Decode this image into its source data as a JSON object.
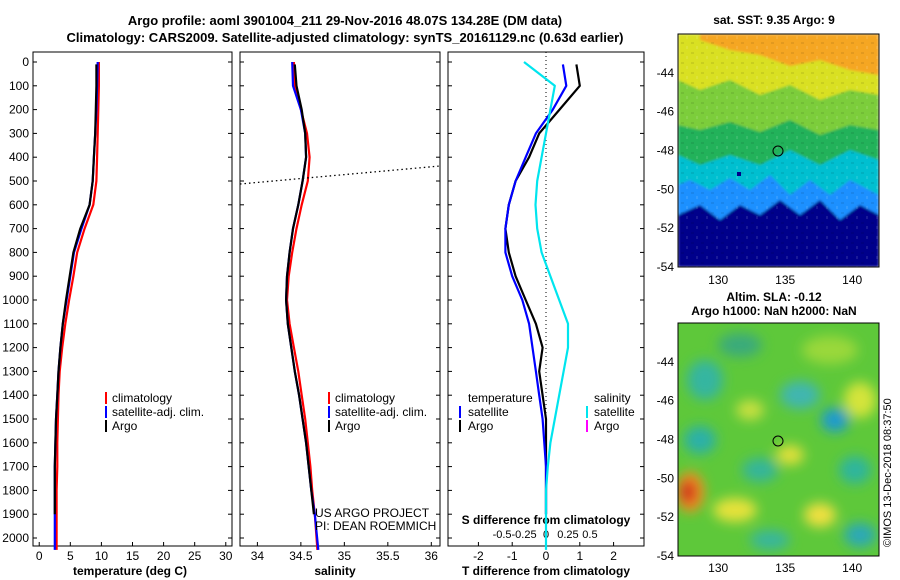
{
  "header": {
    "title_line1": "Argo profile: aoml 3901004_211 29-Nov-2016 48.07S 134.28E (DM data)",
    "title_line2": "Climatology: CARS2009. Satellite-adjusted climatology: synTS_20161129.nc (0.63d earlier)"
  },
  "depth_ticks": [
    "0",
    "100",
    "200",
    "300",
    "400",
    "500",
    "600",
    "700",
    "800",
    "900",
    "1000",
    "1100",
    "1200",
    "1300",
    "1400",
    "1500",
    "1600",
    "1700",
    "1800",
    "1900",
    "2000"
  ],
  "colors": {
    "climatology": "#ff0000",
    "satellite": "#0000ff",
    "argo": "#000000",
    "sal_satellite": "#00e5ee",
    "sal_argo": "#ff00ff"
  },
  "temp_panel": {
    "xlabel": "temperature (deg C)",
    "xticks": [
      "0",
      "5",
      "10",
      "15",
      "20",
      "25",
      "30"
    ],
    "legend": {
      "clim": "climatology",
      "sat": "satellite-adj. clim.",
      "argo": "Argo"
    }
  },
  "sal_panel": {
    "xlabel": "salinity",
    "xticks": [
      "34",
      "34.5",
      "35",
      "35.5",
      "36"
    ],
    "legend": {
      "clim": "climatology",
      "sat": "satellite-adj. clim.",
      "argo": "Argo"
    },
    "note_line1": "US ARGO PROJECT",
    "note_line2": "PI: DEAN ROEMMICH"
  },
  "diff_panel": {
    "xlabel": "T difference from climatology",
    "xticks": [
      "-2",
      "-1",
      "0",
      "1",
      "2"
    ],
    "s_title": "S difference from climatology",
    "s_ticks": [
      "-0.5",
      "-0.25",
      "0",
      "0.25",
      "0.5"
    ],
    "legend_temp": {
      "title": "temperature",
      "sat": "satellite",
      "argo": "Argo"
    },
    "legend_sal": {
      "title": "salinity",
      "sat": "satellite",
      "argo": "Argo"
    }
  },
  "sst_map": {
    "title": "sat. SST: 9.35 Argo: 9",
    "yticks": [
      "-44",
      "-46",
      "-48",
      "-50",
      "-52",
      "-54"
    ],
    "xticks": [
      "130",
      "135",
      "140"
    ]
  },
  "sla_map": {
    "title_line1": "Altim. SLA: -0.12",
    "title_line2": "Argo h1000: NaN h2000: NaN",
    "yticks": [
      "-44",
      "-46",
      "-48",
      "-50",
      "-52",
      "-54"
    ],
    "xticks": [
      "130",
      "135",
      "140"
    ]
  },
  "stamp": "©IMOS 13-Dec-2018 08:37:50",
  "chart_data": [
    {
      "type": "line",
      "title": "temperature",
      "xlabel": "temperature (deg C)",
      "ylabel": "depth",
      "xlim": [
        -1,
        31
      ],
      "ylim": [
        2050,
        0
      ],
      "series": [
        {
          "name": "climatology",
          "x": [
            9.6,
            9.6,
            9.5,
            9.4,
            9.3,
            9.2,
            8.7,
            7.3,
            6.1,
            5.5,
            4.8,
            4.2,
            3.7,
            3.3,
            3.1,
            3.0,
            2.9,
            2.9,
            2.8,
            2.8,
            2.8
          ],
          "y": [
            0,
            100,
            200,
            300,
            400,
            500,
            600,
            700,
            800,
            900,
            1000,
            1100,
            1200,
            1300,
            1400,
            1500,
            1600,
            1700,
            1800,
            1900,
            2050
          ]
        },
        {
          "name": "satellite-adj. clim.",
          "x": [
            9.4,
            9.3,
            9.2,
            9.0,
            8.8,
            8.6,
            8.1,
            6.8,
            5.6,
            5.0,
            4.4,
            3.8,
            3.4,
            3.1,
            2.9,
            2.7,
            2.6,
            2.5,
            2.5,
            2.5,
            2.5
          ],
          "y": [
            0,
            100,
            200,
            300,
            400,
            500,
            600,
            700,
            800,
            900,
            1000,
            1100,
            1200,
            1300,
            1400,
            1500,
            1600,
            1700,
            1800,
            1900,
            2050
          ]
        },
        {
          "name": "Argo",
          "x": [
            9.2,
            9.2,
            9.1,
            9.0,
            8.8,
            8.6,
            8.1,
            6.6,
            5.5,
            4.9,
            4.3,
            3.8,
            3.4,
            3.1,
            2.9,
            2.7,
            2.6,
            2.5,
            2.5,
            2.5
          ],
          "y": [
            10,
            100,
            200,
            300,
            400,
            500,
            600,
            700,
            800,
            900,
            1000,
            1100,
            1200,
            1300,
            1400,
            1500,
            1600,
            1700,
            1800,
            1900
          ]
        }
      ]
    },
    {
      "type": "line",
      "title": "salinity",
      "xlabel": "salinity",
      "ylabel": "depth",
      "xlim": [
        33.8,
        36.1
      ],
      "ylim": [
        2050,
        0
      ],
      "series": [
        {
          "name": "climatology",
          "x": [
            34.42,
            34.43,
            34.5,
            34.57,
            34.6,
            34.58,
            34.51,
            34.45,
            34.4,
            34.36,
            34.34,
            34.37,
            34.42,
            34.47,
            34.51,
            34.55,
            34.58,
            34.61,
            34.63,
            34.66,
            34.69
          ],
          "y": [
            0,
            100,
            200,
            300,
            400,
            500,
            600,
            700,
            800,
            900,
            1000,
            1100,
            1200,
            1300,
            1400,
            1500,
            1600,
            1700,
            1800,
            1900,
            2050
          ]
        },
        {
          "name": "satellite-adj. clim.",
          "x": [
            34.4,
            34.41,
            34.5,
            34.55,
            34.56,
            34.52,
            34.47,
            34.41,
            34.37,
            34.34,
            34.33,
            34.35,
            34.39,
            34.43,
            34.48,
            34.52,
            34.56,
            34.59,
            34.62,
            34.66,
            34.7
          ],
          "y": [
            0,
            100,
            200,
            300,
            400,
            500,
            600,
            700,
            800,
            900,
            1000,
            1100,
            1200,
            1300,
            1400,
            1500,
            1600,
            1700,
            1800,
            1900,
            2050
          ]
        },
        {
          "name": "Argo",
          "x": [
            34.43,
            34.45,
            34.51,
            34.55,
            34.56,
            34.52,
            34.47,
            34.41,
            34.37,
            34.34,
            34.33,
            34.35,
            34.39,
            34.43,
            34.48,
            34.52,
            34.56,
            34.59,
            34.62,
            34.65
          ],
          "y": [
            10,
            100,
            200,
            300,
            400,
            500,
            600,
            700,
            800,
            900,
            1000,
            1100,
            1200,
            1300,
            1400,
            1500,
            1600,
            1700,
            1800,
            1900
          ]
        }
      ]
    },
    {
      "type": "line",
      "title": "T difference from climatology",
      "xlabel": "T difference from climatology",
      "xlim": [
        -2.9,
        2.9
      ],
      "ylim": [
        2050,
        0
      ],
      "series": [
        {
          "name": "temperature satellite",
          "x": [
            0.5,
            0.6,
            0.2,
            -0.3,
            -0.6,
            -0.9,
            -1.1,
            -1.2,
            -1.2,
            -1.0,
            -0.7,
            -0.5,
            -0.4,
            -0.3,
            -0.2,
            -0.1,
            -0.05,
            0,
            0,
            0
          ],
          "y": [
            10,
            100,
            200,
            300,
            400,
            500,
            600,
            700,
            800,
            900,
            1000,
            1100,
            1200,
            1300,
            1400,
            1500,
            1600,
            1700,
            1800,
            1900
          ]
        },
        {
          "name": "temperature Argo",
          "x": [
            0.9,
            1.0,
            0.4,
            -0.2,
            -0.5,
            -0.9,
            -1.1,
            -1.2,
            -1.1,
            -0.9,
            -0.6,
            -0.3,
            -0.1,
            -0.2,
            -0.1,
            0,
            0,
            0,
            0,
            0
          ],
          "y": [
            10,
            100,
            200,
            300,
            400,
            500,
            600,
            700,
            800,
            900,
            1000,
            1100,
            1200,
            1300,
            1400,
            1500,
            1600,
            1700,
            1800,
            1900
          ]
        },
        {
          "name": "salinity satellite",
          "x": [
            -0.25,
            0.1,
            0.05,
            0,
            -0.05,
            -0.1,
            -0.12,
            -0.1,
            -0.05,
            0.05,
            0.15,
            0.25,
            0.25,
            0.2,
            0.15,
            0.1,
            0.05,
            0.02,
            0,
            0,
            0
          ],
          "y": [
            0,
            100,
            200,
            300,
            400,
            500,
            600,
            700,
            800,
            900,
            1000,
            1100,
            1200,
            1300,
            1400,
            1500,
            1600,
            1700,
            1800,
            1900,
            2050
          ]
        }
      ]
    },
    {
      "type": "heatmap",
      "title": "sat. SST: 9.35 Argo: 9",
      "xlim": [
        127,
        142
      ],
      "ylim": [
        -54,
        -42
      ],
      "argo_position": {
        "lon": 134.28,
        "lat": -48.07
      }
    },
    {
      "type": "heatmap",
      "title": "Altim. SLA: -0.12",
      "xlim": [
        127,
        142
      ],
      "ylim": [
        -54,
        -42
      ],
      "argo_position": {
        "lon": 134.28,
        "lat": -48.07
      }
    }
  ]
}
